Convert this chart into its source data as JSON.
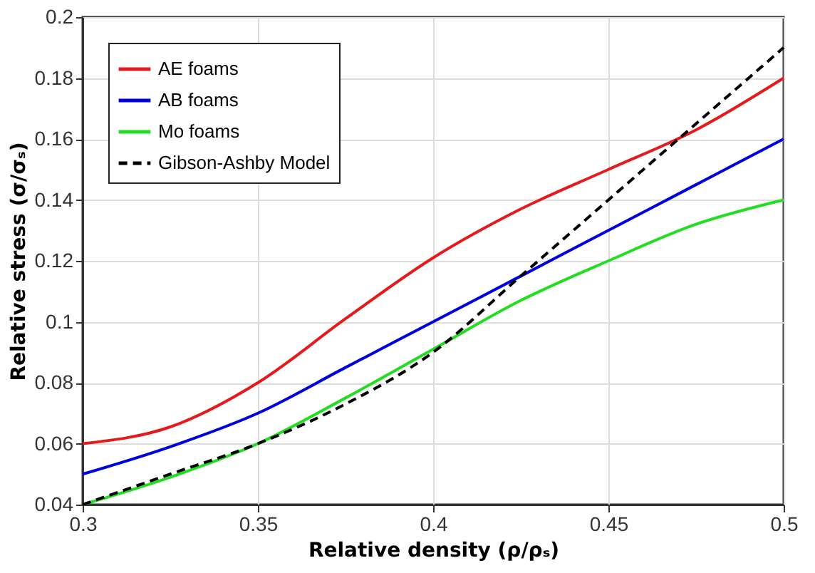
{
  "chart_data": {
    "type": "line",
    "xlabel": "Relative density (ρ/ρₛ)",
    "ylabel": "Relative stress (σ/σₛ)",
    "x": [
      0.3,
      0.325,
      0.35,
      0.375,
      0.4,
      0.425,
      0.45,
      0.475,
      0.5
    ],
    "series": [
      {
        "name": "AE foams",
        "color": "#e41a1c",
        "values": [
          0.06,
          0.0655,
          0.08,
          0.101,
          0.121,
          0.137,
          0.15,
          0.163,
          0.18
        ]
      },
      {
        "name": "AB foams",
        "color": "#0000dd",
        "values": [
          0.05,
          0.059,
          0.07,
          0.085,
          0.1,
          0.115,
          0.13,
          0.145,
          0.16
        ]
      },
      {
        "name": "Mo foams",
        "color": "#22dd22",
        "values": [
          0.04,
          0.049,
          0.06,
          0.075,
          0.091,
          0.107,
          0.12,
          0.132,
          0.14
        ]
      },
      {
        "name": "Gibson-Ashby Model",
        "color": "#000000",
        "line_style": "dashed",
        "values": [
          0.04,
          0.05,
          0.06,
          0.073,
          0.09,
          0.115,
          0.14,
          0.165,
          0.19
        ]
      }
    ],
    "xlim": [
      0.3,
      0.5
    ],
    "xticks": [
      0.3,
      0.35,
      0.4,
      0.45,
      0.5
    ],
    "ylim": [
      0.04,
      0.2
    ],
    "yticks": [
      0.04,
      0.06,
      0.08,
      0.1,
      0.12,
      0.14,
      0.16,
      0.18,
      0.2
    ],
    "grid": true,
    "legend": "top left",
    "marker": "none",
    "line_style": "solid"
  }
}
